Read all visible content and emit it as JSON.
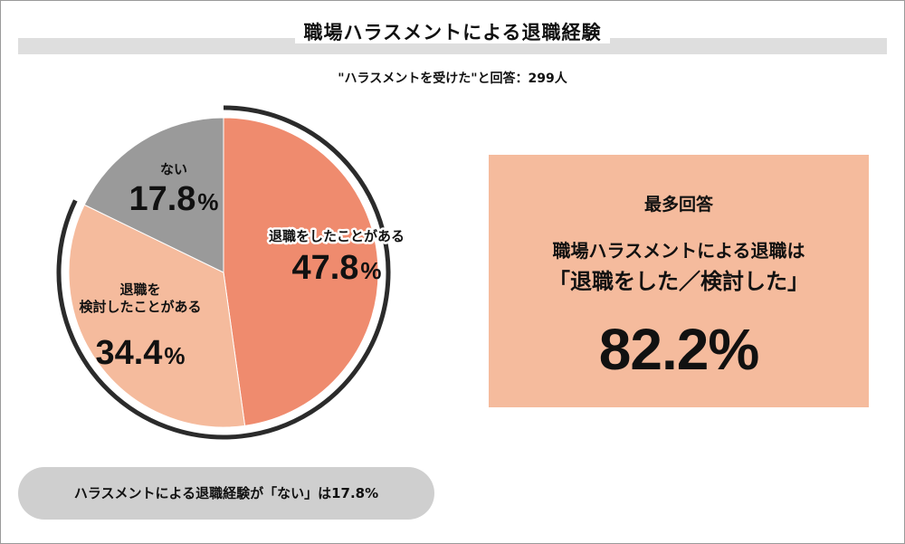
{
  "title": "職場ハラスメントによる退職経験",
  "subtitle": "\"ハラスメントを受けた\"と回答：299人",
  "chart_data": {
    "type": "pie",
    "title": "職場ハラスメントによる退職経験",
    "subtitle": "\"ハラスメントを受けた\"と回答：299人",
    "slices": [
      {
        "name": "退職をしたことがある",
        "label_lines": [
          "退職をしたことがある"
        ],
        "value": 47.8,
        "value_label": "47.8",
        "color": "#ef8b6e",
        "emphasized_label": true
      },
      {
        "name": "退職を検討したことがある",
        "label_lines": [
          "退職を",
          "検討したことがある"
        ],
        "value": 34.4,
        "value_label": "34.4",
        "color": "#f5bb9d",
        "emphasized_label": false
      },
      {
        "name": "ない",
        "label_lines": [
          "ない"
        ],
        "value": 17.8,
        "value_label": "17.8",
        "color": "#9a9a9a",
        "emphasized_label": false
      }
    ],
    "percent_sign": "%",
    "highlight_arc": [
      "退職をしたことがある",
      "退職を検討したことがある"
    ]
  },
  "callout": {
    "heading": "最多回答",
    "line1": "職場ハラスメントによる退職は",
    "line2": "「退職をした／検討した」",
    "value": "82.2%"
  },
  "footnote": "ハラスメントによる退職経験が「ない」は17.8%",
  "colors": {
    "accent": "#ef8b6e",
    "light_accent": "#f5bb9d",
    "gray": "#9a9a9a",
    "band": "#dedede",
    "arc": "#2b2b2b"
  }
}
